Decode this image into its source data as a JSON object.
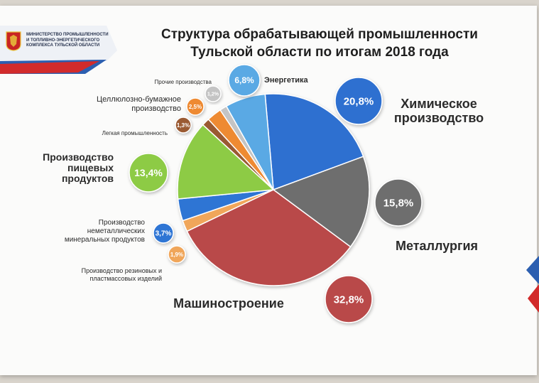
{
  "header": {
    "ministry_lines": [
      "МИНИСТЕРСТВО ПРОМЫШЛЕННОСТИ",
      "И ТОПЛИВНО-ЭНЕРГЕТИЧЕСКОГО",
      "КОМПЛЕКСА ТУЛЬСКОЙ ОБЛАСТИ"
    ],
    "title_line1": "Структура обрабатывающей промышленности",
    "title_line2": "Тульской области по итогам 2018 года"
  },
  "colors": {
    "ribbon_blue": "#2c5fb0",
    "ribbon_red": "#d22b2b"
  },
  "chart_data": {
    "type": "pie",
    "title": "Структура обрабатывающей промышленности Тульской области по итогам 2018 года",
    "unit": "%",
    "slices": [
      {
        "label": "Химическое производство",
        "value": 20.8,
        "value_text": "20,8%",
        "color": "#2e6fd0"
      },
      {
        "label": "Металлургия",
        "value": 15.8,
        "value_text": "15,8%",
        "color": "#6e6e6e"
      },
      {
        "label": "Машиностроение",
        "value": 32.8,
        "value_text": "32,8%",
        "color": "#b94848"
      },
      {
        "label": "Производство резиновых и пластмассовых изделий",
        "value": 1.9,
        "value_text": "1,9%",
        "color": "#f0a65a"
      },
      {
        "label": "Производство неметаллических минеральных продуктов",
        "value": 3.7,
        "value_text": "3,7%",
        "color": "#2f74d4"
      },
      {
        "label": "Производство пищевых продуктов",
        "value": 13.4,
        "value_text": "13,4%",
        "color": "#8dcb44"
      },
      {
        "label": "Легкая промышленность",
        "value": 1.3,
        "value_text": "1,3%",
        "color": "#9a5a33"
      },
      {
        "label": "Целлюлозно-бумажное производство",
        "value": 2.5,
        "value_text": "2,5%",
        "color": "#ee8a30"
      },
      {
        "label": "Прочие производства",
        "value": 1.2,
        "value_text": "1,2%",
        "color": "#c4c4c4"
      },
      {
        "label": "Энергетика",
        "value": 6.8,
        "value_text": "6,8%",
        "color": "#5aa9e4"
      }
    ]
  }
}
